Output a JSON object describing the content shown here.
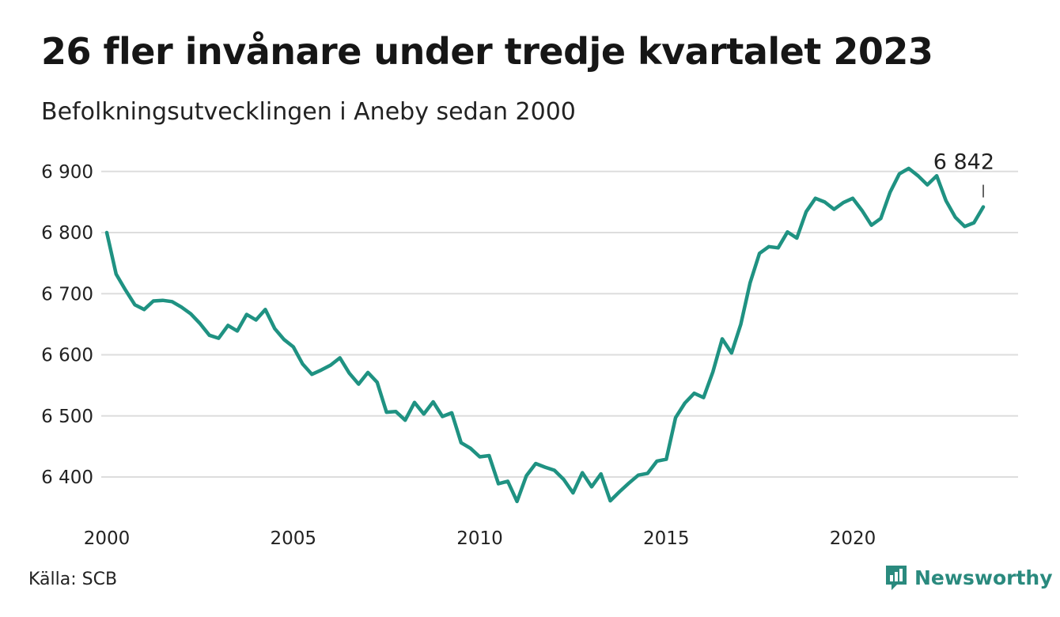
{
  "header": {
    "title": "26 fler invånare under tredje kvartalet 2023",
    "subtitle": "Befolkningsutvecklingen i Aneby sedan 2000"
  },
  "footer": {
    "source": "Källa: SCB",
    "brand": "Newsworthy",
    "brand_icon": "bar-chart-speech-bubble-icon"
  },
  "colors": {
    "line": "#1f9282",
    "grid": "#dddddd",
    "brand": "#2a8a7e"
  },
  "chart_data": {
    "type": "line",
    "title": "26 fler invånare under tredje kvartalet 2023",
    "subtitle": "Befolkningsutvecklingen i Aneby sedan 2000",
    "xlabel": "",
    "ylabel": "",
    "ylim": [
      6340,
      6920
    ],
    "xlim": [
      2000,
      2024.2
    ],
    "y_ticks": [
      6400,
      6500,
      6600,
      6700,
      6800,
      6900
    ],
    "y_tick_labels": [
      "6 400",
      "6 500",
      "6 600",
      "6 700",
      "6 800",
      "6 900"
    ],
    "x_ticks": [
      2000,
      2005,
      2010,
      2015,
      2020
    ],
    "x_tick_labels": [
      "2000",
      "2005",
      "2010",
      "2015",
      "2020"
    ],
    "grid": true,
    "end_label": "6 842",
    "series": [
      {
        "x": [
          2000.0,
          2000.25,
          2000.5,
          2000.75,
          2001.0,
          2001.25,
          2001.5,
          2001.75,
          2002.0,
          2002.25,
          2002.5,
          2002.75,
          2003.0,
          2003.25,
          2003.5,
          2003.75,
          2004.0,
          2004.25,
          2004.5,
          2004.75,
          2005.0,
          2005.25,
          2005.5,
          2005.75,
          2006.0,
          2006.25,
          2006.5,
          2006.75,
          2007.0,
          2007.25,
          2007.5,
          2007.75,
          2008.0,
          2008.25,
          2008.5,
          2008.75,
          2009.0,
          2009.25,
          2009.5,
          2009.75,
          2010.0,
          2010.25,
          2010.5,
          2010.75,
          2011.0,
          2011.25,
          2011.5,
          2011.75,
          2012.0,
          2012.25,
          2012.5,
          2012.75,
          2013.0,
          2013.25,
          2013.5,
          2013.75,
          2014.0,
          2014.25,
          2014.5,
          2014.75,
          2015.0,
          2015.25,
          2015.5,
          2015.75,
          2016.0,
          2016.25,
          2016.5,
          2016.75,
          2017.0,
          2017.25,
          2017.5,
          2017.75,
          2018.0,
          2018.25,
          2018.5,
          2018.75,
          2019.0,
          2019.25,
          2019.5,
          2019.75,
          2020.0,
          2020.25,
          2020.5,
          2020.75,
          2021.0,
          2021.25,
          2021.5,
          2021.75,
          2022.0,
          2022.25,
          2022.5,
          2022.75,
          2023.0,
          2023.25,
          2023.5
        ],
        "values": [
          6800,
          6732,
          6706,
          6682,
          6674,
          6688,
          6689,
          6687,
          6678,
          6667,
          6651,
          6632,
          6627,
          6648,
          6639,
          6666,
          6657,
          6674,
          6643,
          6625,
          6613,
          6585,
          6568,
          6575,
          6583,
          6595,
          6570,
          6552,
          6571,
          6555,
          6506,
          6507,
          6493,
          6522,
          6503,
          6523,
          6499,
          6505,
          6456,
          6447,
          6433,
          6435,
          6389,
          6393,
          6360,
          6402,
          6422,
          6416,
          6411,
          6396,
          6374,
          6407,
          6384,
          6405,
          6361,
          6376,
          6390,
          6403,
          6406,
          6426,
          6429,
          6497,
          6521,
          6537,
          6530,
          6572,
          6626,
          6603,
          6650,
          6718,
          6766,
          6777,
          6775,
          6801,
          6791,
          6834,
          6856,
          6850,
          6838,
          6849,
          6856,
          6836,
          6812,
          6823,
          6866,
          6896,
          6905,
          6893,
          6878,
          6893,
          6852,
          6825,
          6810,
          6816,
          6842
        ]
      }
    ]
  }
}
